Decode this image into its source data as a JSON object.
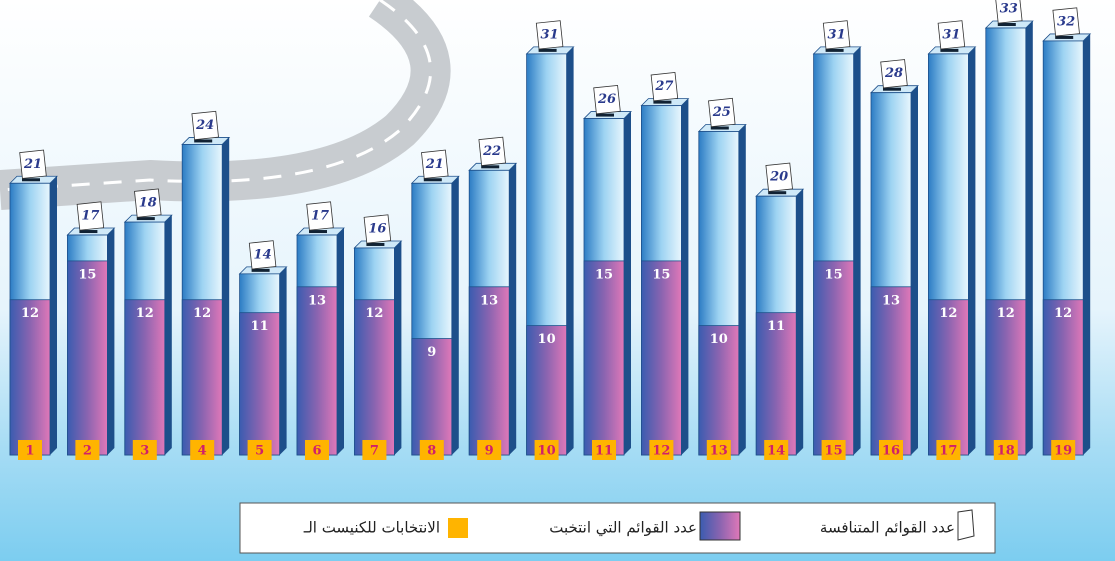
{
  "chart_data": {
    "type": "bar",
    "categories": [
      "1",
      "2",
      "3",
      "4",
      "5",
      "6",
      "7",
      "8",
      "9",
      "10",
      "11",
      "12",
      "13",
      "14",
      "15",
      "16",
      "17",
      "18",
      "19"
    ],
    "category_legend": "الانتخابات للكنيست الـ",
    "category_color": "#ffb400",
    "series": [
      {
        "name": "عدد القوائم المتنافسة",
        "color": "#7cc3ec",
        "values": [
          21,
          17,
          18,
          24,
          14,
          17,
          16,
          21,
          22,
          31,
          26,
          27,
          25,
          20,
          31,
          28,
          31,
          33,
          32
        ]
      },
      {
        "name": "عدد القوائم التي انتخبت",
        "color": "#9a5aa6",
        "values": [
          12,
          15,
          12,
          12,
          11,
          13,
          12,
          9,
          13,
          10,
          15,
          15,
          10,
          11,
          15,
          13,
          12,
          12,
          12
        ]
      }
    ]
  }
}
